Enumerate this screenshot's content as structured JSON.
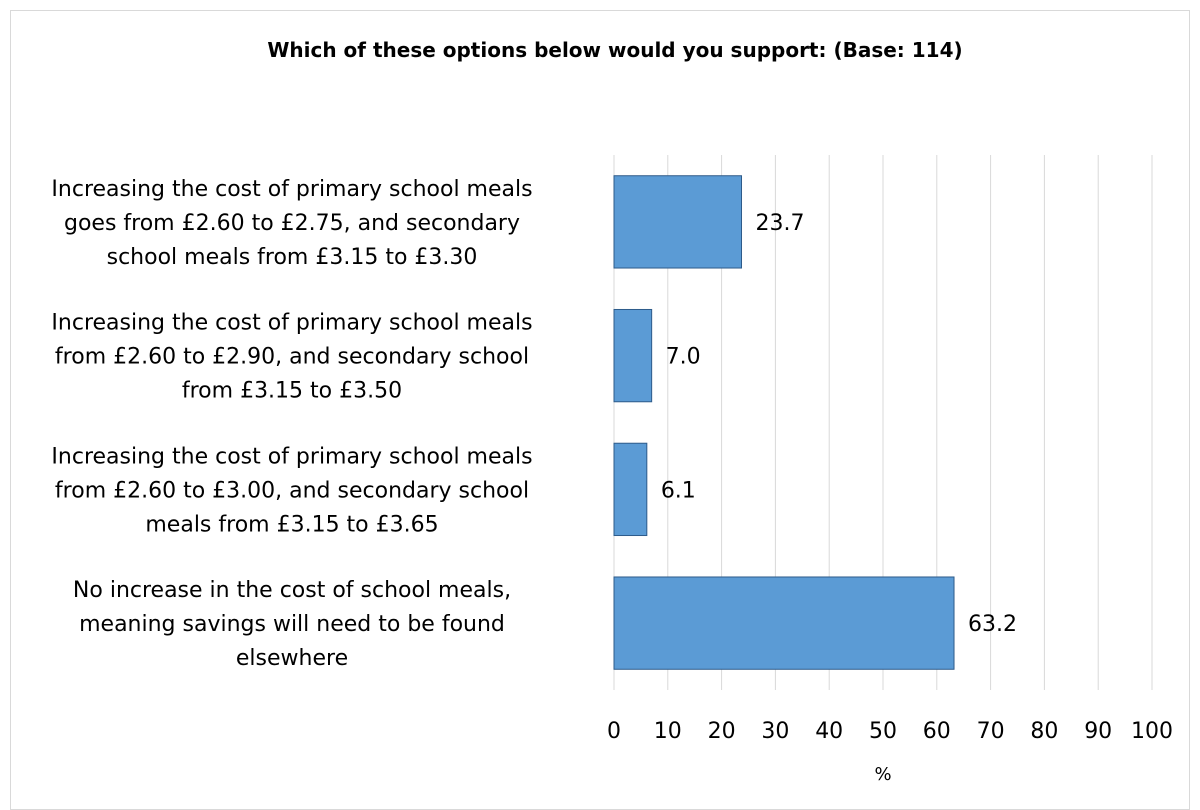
{
  "chart_data": {
    "type": "bar",
    "orientation": "horizontal",
    "title": "Which of these options below would you support: (Base: 114)",
    "xlabel": "%",
    "ylabel": "",
    "xlim": [
      0,
      100
    ],
    "ticks": [
      0,
      10,
      20,
      30,
      40,
      50,
      60,
      70,
      80,
      90,
      100
    ],
    "grid": true,
    "categories": [
      [
        "Increasing the cost of primary school meals",
        "goes from £2.60 to £2.75, and secondary",
        "school meals from £3.15 to £3.30"
      ],
      [
        "Increasing the cost of primary school meals",
        "from £2.60 to £2.90, and secondary school",
        "from £3.15 to £3.50"
      ],
      [
        "Increasing the cost of primary school meals",
        "from £2.60 to £3.00, and secondary school",
        "meals from £3.15 to £3.65"
      ],
      [
        "No increase in the cost of school meals,",
        "meaning savings will need to be found",
        "elsewhere"
      ]
    ],
    "values": [
      23.7,
      7.0,
      6.1,
      63.2
    ],
    "value_labels": [
      "23.7",
      "7.0",
      "6.1",
      "63.2"
    ],
    "bar_color": "#5b9bd5",
    "bar_border_color": "#2e5b8a",
    "grid_color": "#d9d9d9"
  }
}
